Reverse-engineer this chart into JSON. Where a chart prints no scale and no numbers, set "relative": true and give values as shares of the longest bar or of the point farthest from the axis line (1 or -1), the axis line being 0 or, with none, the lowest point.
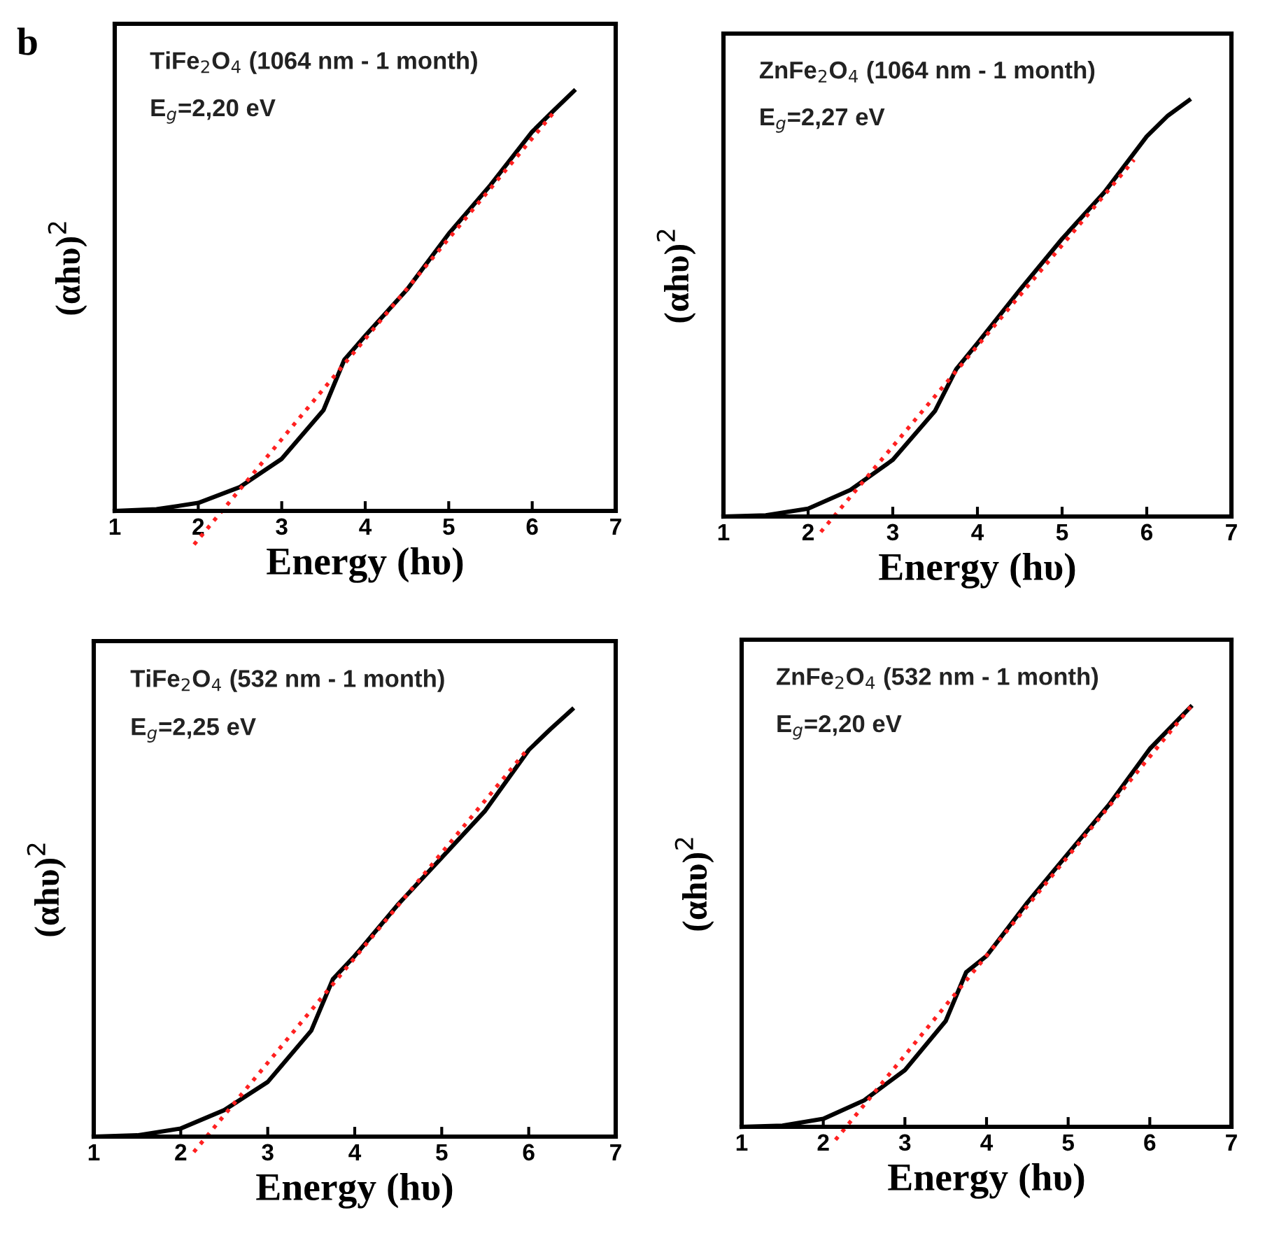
{
  "chart_data": [
    {
      "type": "line",
      "relative": true,
      "xlabel": "Energy (hυ)",
      "ylabel": "(αhυ)$^{2}$",
      "xlim": [
        1,
        7
      ],
      "xticks": [
        1,
        2,
        3,
        4,
        5,
        6,
        7
      ],
      "tick_labels": "x",
      "grid": false,
      "legend": false,
      "annotations": [
        "b",
        "TiFe$_{2}$O$_{4}$ (1064 nm - 1 month)",
        "E$_{g}$=2,20 eV"
      ],
      "series": [
        {
          "color": "#000000",
          "line_style": "solid",
          "x": [
            1,
            1.5,
            2,
            2.5,
            3,
            3.5,
            3.75,
            4,
            4.5,
            5,
            5.5,
            6,
            6.25,
            6.5
          ],
          "values": [
            0,
            0.004,
            0.019,
            0.057,
            0.124,
            0.24,
            0.36,
            0.417,
            0.527,
            0.66,
            0.776,
            0.903,
            0.952,
            1
          ]
        },
        {
          "color": "#ff2020",
          "line_style": "dotted",
          "x": [
            1.95,
            6.25
          ],
          "values": [
            -0.08,
            0.947
          ]
        }
      ]
    },
    {
      "type": "line",
      "relative": true,
      "xlabel": "Energy (hυ)",
      "ylabel": "(αhυ)$^{2}$",
      "xlim": [
        1,
        7
      ],
      "xticks": [
        1,
        2,
        3,
        4,
        5,
        6,
        7
      ],
      "tick_labels": "x",
      "grid": false,
      "legend": false,
      "annotations": [
        "ZnFe$_{2}$O$_{4}$ (1064 nm - 1 month)",
        "E$_{g}$=2,27 eV"
      ],
      "series": [
        {
          "color": "#000000",
          "line_style": "solid",
          "x": [
            1,
            1.5,
            2,
            2.5,
            3,
            3.5,
            3.75,
            4,
            4.5,
            5,
            5.5,
            6,
            6.25,
            6.5
          ],
          "values": [
            0,
            0.003,
            0.019,
            0.064,
            0.136,
            0.254,
            0.354,
            0.416,
            0.544,
            0.667,
            0.779,
            0.913,
            0.963,
            1
          ]
        },
        {
          "color": "#ff2020",
          "line_style": "dotted",
          "x": [
            2.15,
            5.85
          ],
          "values": [
            -0.037,
            0.857
          ]
        }
      ]
    },
    {
      "type": "line",
      "relative": true,
      "xlabel": "Energy (hυ)",
      "ylabel": "(αhυ)$^{2}$",
      "xlim": [
        1,
        7
      ],
      "xticks": [
        1,
        2,
        3,
        4,
        5,
        6,
        7
      ],
      "tick_labels": "x",
      "grid": false,
      "legend": false,
      "annotations": [
        "TiFe$_{2}$O$_{4}$ (532 nm - 1 month)",
        "E$_{g}$=2,25 eV"
      ],
      "series": [
        {
          "color": "#000000",
          "line_style": "solid",
          "x": [
            1,
            1.5,
            2,
            2.5,
            3,
            3.5,
            3.75,
            4,
            4.5,
            5,
            5.5,
            6,
            6.25,
            6.5
          ],
          "values": [
            0,
            0.003,
            0.019,
            0.062,
            0.128,
            0.248,
            0.369,
            0.423,
            0.544,
            0.653,
            0.763,
            0.905,
            0.954,
            1
          ]
        },
        {
          "color": "#ff2020",
          "line_style": "dotted",
          "x": [
            2.15,
            6.0
          ],
          "values": [
            -0.036,
            0.91
          ]
        }
      ]
    },
    {
      "type": "line",
      "relative": true,
      "xlabel": "Energy (hυ)",
      "ylabel": "(αhυ)$^{2}$",
      "xlim": [
        1,
        7
      ],
      "xticks": [
        1,
        2,
        3,
        4,
        5,
        6,
        7
      ],
      "tick_labels": "x",
      "grid": false,
      "legend": false,
      "annotations": [
        "ZnFe$_{2}$O$_{4}$ (532 nm - 1 month)",
        "E$_{g}$=2,20 eV"
      ],
      "series": [
        {
          "color": "#000000",
          "line_style": "solid",
          "x": [
            1,
            1.5,
            2,
            2.5,
            3,
            3.5,
            3.75,
            4,
            4.5,
            5,
            5.5,
            6,
            6.25,
            6.5
          ],
          "values": [
            0,
            0.003,
            0.019,
            0.063,
            0.135,
            0.252,
            0.368,
            0.407,
            0.534,
            0.651,
            0.767,
            0.9,
            0.95,
            1
          ]
        },
        {
          "color": "#ff2020",
          "line_style": "dotted",
          "x": [
            2.15,
            6.5
          ],
          "values": [
            -0.031,
            1.0
          ]
        }
      ]
    }
  ]
}
